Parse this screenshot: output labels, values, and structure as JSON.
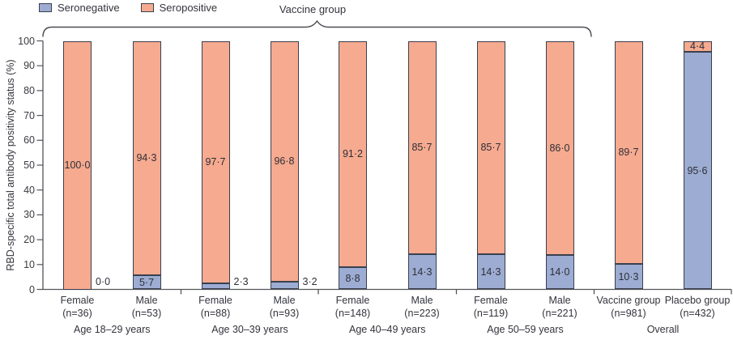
{
  "legend": {
    "items": [
      {
        "label": "Seronegative",
        "color": "#9dacd2"
      },
      {
        "label": "Seropositive",
        "color": "#f6aa8f"
      }
    ]
  },
  "brace": {
    "label": "Vaccine group"
  },
  "y_axis": {
    "title": "RBD-specific total antibody positivity status (%)",
    "ticks": [
      0,
      10,
      20,
      30,
      40,
      50,
      60,
      70,
      80,
      90,
      100
    ]
  },
  "chart_data": {
    "type": "bar",
    "stacked": true,
    "ylabel": "RBD-specific total antibody positivity status (%)",
    "ylim": [
      0,
      100
    ],
    "grid": false,
    "legend_position": "top-left",
    "series_order": [
      "seronegative",
      "seropositive"
    ],
    "colors": {
      "seronegative": "#9dacd2",
      "seropositive": "#f6aa8f",
      "outline": "#39404f"
    },
    "groups": [
      {
        "label": "Age 18–29 years",
        "bars": [
          0,
          1
        ]
      },
      {
        "label": "Age 30–39 years",
        "bars": [
          2,
          3
        ]
      },
      {
        "label": "Age 40–49 years",
        "bars": [
          4,
          5
        ]
      },
      {
        "label": "Age 50–59 years",
        "bars": [
          6,
          7
        ]
      },
      {
        "label": "Overall",
        "bars": [
          8,
          9
        ]
      }
    ],
    "bars": [
      {
        "category": "Female",
        "n_label": "(n=36)",
        "seronegative": 0.0,
        "seropositive": 100.0,
        "seronegative_label": "0·0",
        "seropositive_label": "100·0",
        "seronegative_label_outside": true
      },
      {
        "category": "Male",
        "n_label": "(n=53)",
        "seronegative": 5.7,
        "seropositive": 94.3,
        "seronegative_label": "5·7",
        "seropositive_label": "94·3",
        "seronegative_label_outside": false
      },
      {
        "category": "Female",
        "n_label": "(n=88)",
        "seronegative": 2.3,
        "seropositive": 97.7,
        "seronegative_label": "2·3",
        "seropositive_label": "97·7",
        "seronegative_label_outside": true
      },
      {
        "category": "Male",
        "n_label": "(n=93)",
        "seronegative": 3.2,
        "seropositive": 96.8,
        "seronegative_label": "3·2",
        "seropositive_label": "96·8",
        "seronegative_label_outside": true
      },
      {
        "category": "Female",
        "n_label": "(n=148)",
        "seronegative": 8.8,
        "seropositive": 91.2,
        "seronegative_label": "8·8",
        "seropositive_label": "91·2",
        "seronegative_label_outside": false
      },
      {
        "category": "Male",
        "n_label": "(n=223)",
        "seronegative": 14.3,
        "seropositive": 85.7,
        "seronegative_label": "14·3",
        "seropositive_label": "85·7",
        "seronegative_label_outside": false
      },
      {
        "category": "Female",
        "n_label": "(n=119)",
        "seronegative": 14.3,
        "seropositive": 85.7,
        "seronegative_label": "14·3",
        "seropositive_label": "85·7",
        "seronegative_label_outside": false
      },
      {
        "category": "Male",
        "n_label": "(n=221)",
        "seronegative": 14.0,
        "seropositive": 86.0,
        "seronegative_label": "14·0",
        "seropositive_label": "86·0",
        "seronegative_label_outside": false
      },
      {
        "category": "Vaccine group",
        "n_label": "(n=981)",
        "seronegative": 10.3,
        "seropositive": 89.7,
        "seronegative_label": "10·3",
        "seropositive_label": "89·7",
        "seronegative_label_outside": false
      },
      {
        "category": "Placebo group",
        "n_label": "(n=432)",
        "seronegative": 95.6,
        "seropositive": 4.4,
        "seronegative_label": "95·6",
        "seropositive_label": "4·4",
        "seronegative_label_outside": false
      }
    ]
  }
}
